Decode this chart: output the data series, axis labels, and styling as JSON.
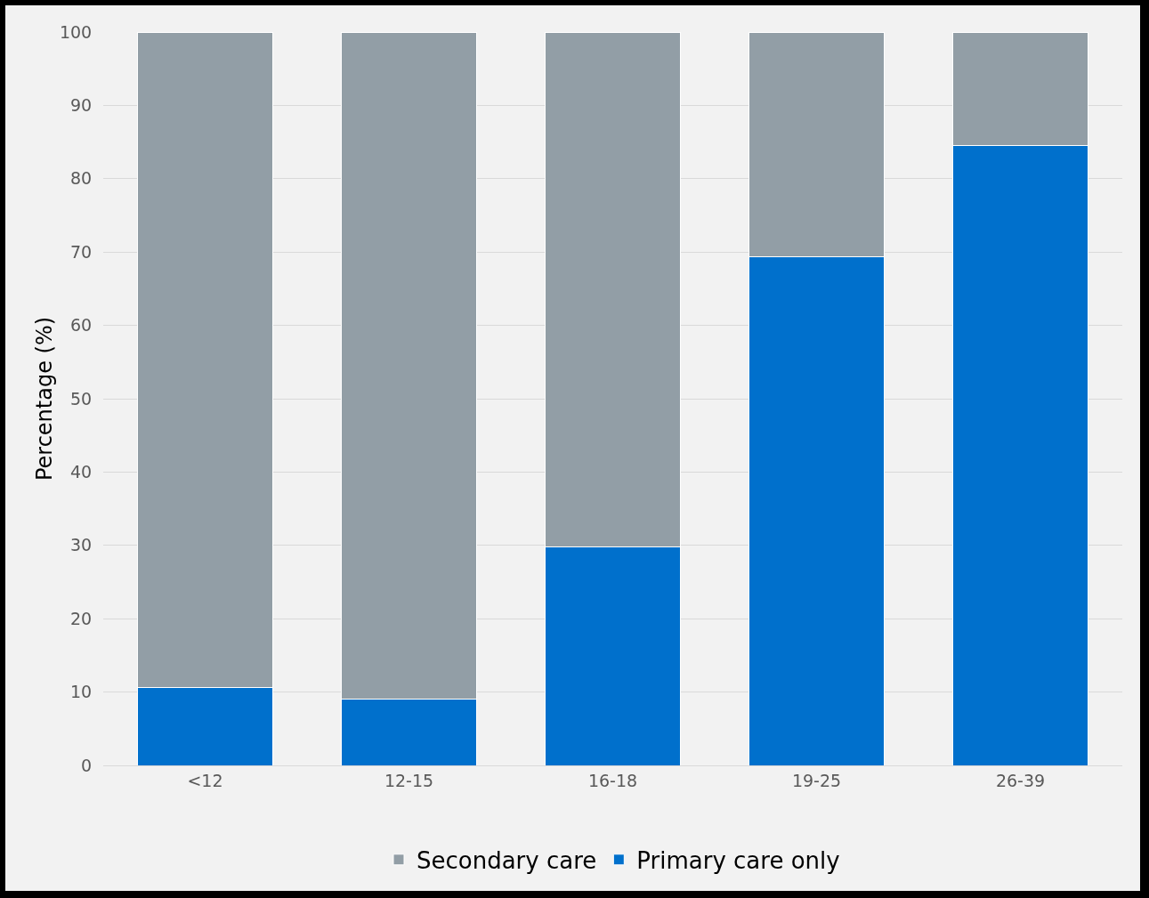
{
  "chart_data": {
    "type": "bar",
    "stacked": true,
    "ylabel": "Percentage (%)",
    "categories": [
      "<12",
      "12-15",
      "16-18",
      "19-25",
      "26-39"
    ],
    "series": [
      {
        "name": "Primary care only",
        "color": "#0070cc",
        "values": [
          10.6,
          9.0,
          29.8,
          69.4,
          84.5
        ]
      },
      {
        "name": "Secondary care",
        "color": "#929ea6",
        "values": [
          89.4,
          91.0,
          70.2,
          30.6,
          15.5
        ]
      }
    ],
    "ylim": [
      0,
      100
    ],
    "yticks": [
      0,
      10,
      20,
      30,
      40,
      50,
      60,
      70,
      80,
      90,
      100
    ],
    "grid": "y",
    "legend": "bottom"
  }
}
